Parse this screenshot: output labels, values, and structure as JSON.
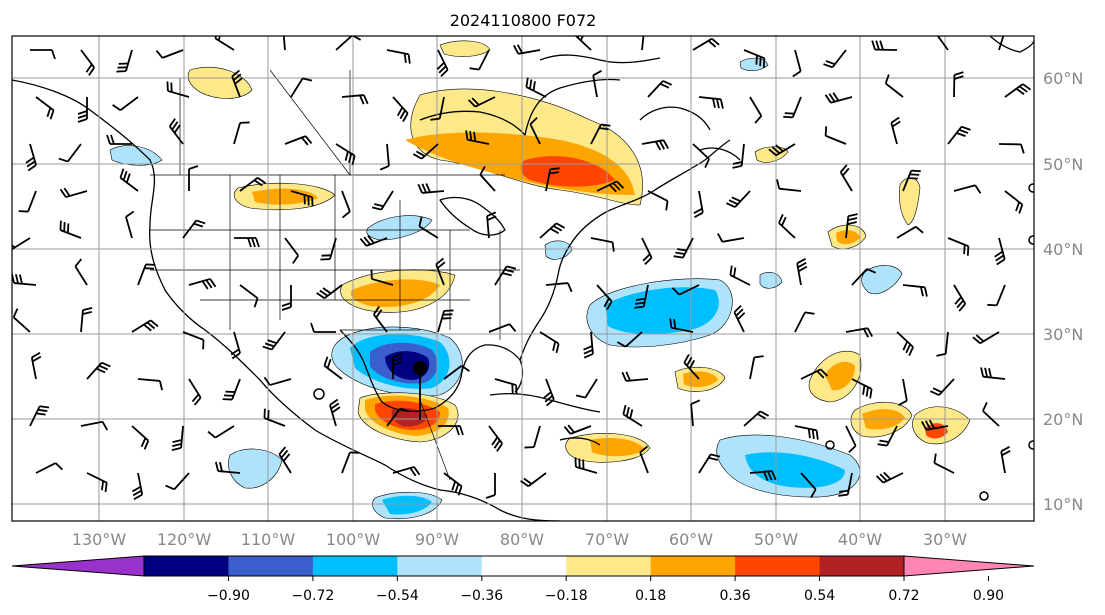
{
  "title": "2024110800 F072",
  "colors": {
    "bins": [
      "#9932cc",
      "#000080",
      "#3a5fcd",
      "#00bfff",
      "#aee3fb",
      "#ffffff",
      "#fde88a",
      "#ffa500",
      "#ff4500",
      "#b22222",
      "#ff85b4"
    ]
  },
  "colorbar": {
    "ticks": [
      "−0.90",
      "−0.72",
      "−0.54",
      "−0.36",
      "−0.18",
      "0.18",
      "0.36",
      "0.54",
      "0.72",
      "0.90"
    ]
  },
  "map": {
    "longitude_labels": [
      "130°W",
      "120°W",
      "110°W",
      "100°W",
      "90°W",
      "80°W",
      "70°W",
      "60°W",
      "50°W",
      "40°W",
      "30°W"
    ],
    "latitude_labels": [
      "60°N",
      "50°N",
      "40°N",
      "30°N",
      "20°N",
      "10°N"
    ],
    "field_features": [
      {
        "name": "gulf-low-center",
        "lon": -91.5,
        "lat": 26,
        "sign": "negative",
        "peak_bin": "-0.90 to -0.72"
      },
      {
        "name": "yucatan-positive",
        "lon": -93,
        "lat": 20,
        "sign": "positive",
        "peak_bin": "0.72 to 0.90"
      },
      {
        "name": "hudson-positive",
        "lon": -68,
        "lat": 50,
        "sign": "positive",
        "peak_bin": "0.54 to 0.72"
      },
      {
        "name": "atlantic-negative",
        "lon": -66,
        "lat": 31,
        "sign": "negative",
        "peak_bin": "-0.54 to -0.36"
      }
    ]
  }
}
